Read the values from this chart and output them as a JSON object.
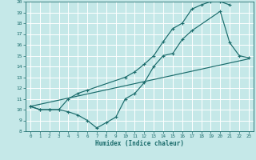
{
  "title": "",
  "xlabel": "Humidex (Indice chaleur)",
  "bg_color": "#c5e8e8",
  "grid_color": "#ffffff",
  "line_color": "#1a6b6b",
  "line1_x": [
    0,
    1,
    2,
    3,
    4,
    5,
    6,
    10,
    11,
    12,
    13,
    14,
    15,
    16,
    17,
    18,
    19,
    20,
    21
  ],
  "line1_y": [
    10.3,
    10.0,
    10.0,
    10.0,
    11.0,
    11.5,
    11.8,
    13.0,
    13.5,
    14.2,
    15.0,
    16.3,
    17.5,
    18.0,
    19.3,
    19.7,
    20.0,
    20.0,
    19.7
  ],
  "line2_x": [
    0,
    1,
    2,
    3,
    4,
    5,
    6,
    7,
    8,
    9,
    10,
    11,
    12,
    13,
    14,
    15,
    16,
    17,
    20,
    21,
    22,
    23
  ],
  "line2_y": [
    10.3,
    10.0,
    10.0,
    10.0,
    9.8,
    9.5,
    9.0,
    8.3,
    8.8,
    9.3,
    11.0,
    11.5,
    12.5,
    14.0,
    15.0,
    15.2,
    16.5,
    17.3,
    19.1,
    16.2,
    15.0,
    14.8
  ],
  "line3_x": [
    0,
    23
  ],
  "line3_y": [
    10.3,
    14.7
  ],
  "xlim": [
    -0.5,
    23.5
  ],
  "ylim": [
    8,
    20
  ],
  "yticks": [
    8,
    9,
    10,
    11,
    12,
    13,
    14,
    15,
    16,
    17,
    18,
    19,
    20
  ],
  "xticks": [
    0,
    1,
    2,
    3,
    4,
    5,
    6,
    7,
    8,
    9,
    10,
    11,
    12,
    13,
    14,
    15,
    16,
    17,
    18,
    19,
    20,
    21,
    22,
    23
  ]
}
